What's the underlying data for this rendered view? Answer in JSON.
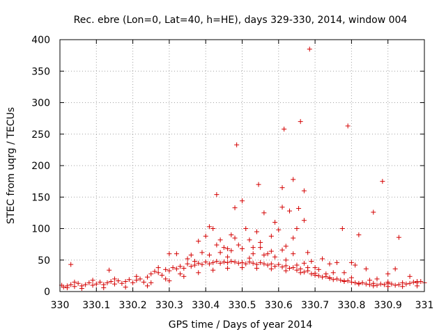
{
  "chart_data": {
    "type": "scatter",
    "title": "Rec. ebre (Lon=0, Lat=40, h=HE), days 329-330, 2014, window 004",
    "xlabel": "GPS time / Days of year 2014",
    "ylabel": "STEC from uqrg / TECUs",
    "xlim": [
      330,
      331
    ],
    "ylim": [
      0,
      400
    ],
    "grid": true,
    "x_ticks": [
      "330",
      "330.1",
      "330.2",
      "330.3",
      "330.4",
      "330.5",
      "330.6",
      "330.7",
      "330.8",
      "330.9",
      "331"
    ],
    "y_ticks": [
      "0",
      "50",
      "100",
      "150",
      "200",
      "250",
      "300",
      "350",
      "400"
    ],
    "series": [
      {
        "name": "STEC",
        "color": "#d40000",
        "marker": "plus",
        "points": [
          [
            330.005,
            10
          ],
          [
            330.01,
            7
          ],
          [
            330.02,
            9
          ],
          [
            330.03,
            11
          ],
          [
            330.03,
            43
          ],
          [
            330.04,
            8
          ],
          [
            330.05,
            13
          ],
          [
            330.06,
            9
          ],
          [
            330.07,
            11
          ],
          [
            330.08,
            14
          ],
          [
            330.09,
            10
          ],
          [
            330.1,
            12
          ],
          [
            330.11,
            15
          ],
          [
            330.12,
            11
          ],
          [
            330.13,
            14
          ],
          [
            330.135,
            34
          ],
          [
            330.14,
            16
          ],
          [
            330.15,
            12
          ],
          [
            330.16,
            17
          ],
          [
            330.17,
            13
          ],
          [
            330.18,
            16
          ],
          [
            330.19,
            19
          ],
          [
            330.2,
            14
          ],
          [
            330.21,
            18
          ],
          [
            330.22,
            20
          ],
          [
            330.23,
            15
          ],
          [
            330.24,
            23
          ],
          [
            330.25,
            28
          ],
          [
            330.26,
            32
          ],
          [
            330.27,
            30
          ],
          [
            330.28,
            26
          ],
          [
            330.29,
            35
          ],
          [
            330.3,
            33
          ],
          [
            330.31,
            38
          ],
          [
            330.32,
            36
          ],
          [
            330.33,
            40
          ],
          [
            330.34,
            37
          ],
          [
            330.35,
            44
          ],
          [
            330.36,
            40
          ],
          [
            330.37,
            42
          ],
          [
            330.38,
            45
          ],
          [
            330.39,
            43
          ],
          [
            330.4,
            47
          ],
          [
            330.41,
            44
          ],
          [
            330.42,
            46
          ],
          [
            330.43,
            48
          ],
          [
            330.44,
            45
          ],
          [
            330.45,
            47
          ],
          [
            330.46,
            46
          ],
          [
            330.47,
            48
          ],
          [
            330.48,
            47
          ],
          [
            330.49,
            45
          ],
          [
            330.5,
            46
          ],
          [
            330.51,
            44
          ],
          [
            330.52,
            47
          ],
          [
            330.53,
            45
          ],
          [
            330.54,
            43
          ],
          [
            330.55,
            46
          ],
          [
            330.56,
            44
          ],
          [
            330.57,
            42
          ],
          [
            330.58,
            44
          ],
          [
            330.59,
            40
          ],
          [
            330.6,
            43
          ],
          [
            330.61,
            39
          ],
          [
            330.62,
            41
          ],
          [
            330.63,
            37
          ],
          [
            330.64,
            38
          ],
          [
            330.65,
            34
          ],
          [
            330.66,
            36
          ],
          [
            330.67,
            31
          ],
          [
            330.68,
            33
          ],
          [
            330.69,
            28
          ],
          [
            330.7,
            29
          ],
          [
            330.71,
            25
          ],
          [
            330.72,
            23
          ],
          [
            330.73,
            24
          ],
          [
            330.74,
            21
          ],
          [
            330.75,
            19
          ],
          [
            330.76,
            20
          ],
          [
            330.77,
            18
          ],
          [
            330.78,
            16
          ],
          [
            330.79,
            17
          ],
          [
            330.8,
            15
          ],
          [
            330.81,
            14
          ],
          [
            330.82,
            13
          ],
          [
            330.83,
            14
          ],
          [
            330.84,
            12
          ],
          [
            330.85,
            11
          ],
          [
            330.86,
            13
          ],
          [
            330.87,
            10
          ],
          [
            330.88,
            12
          ],
          [
            330.89,
            11
          ],
          [
            330.9,
            13
          ],
          [
            330.91,
            12
          ],
          [
            330.92,
            10
          ],
          [
            330.93,
            11
          ],
          [
            330.94,
            14
          ],
          [
            330.95,
            12
          ],
          [
            330.96,
            13
          ],
          [
            330.97,
            15
          ],
          [
            330.98,
            14
          ],
          [
            330.99,
            16
          ],
          [
            331,
            14
          ],
          [
            330.02,
            6
          ],
          [
            330.06,
            5
          ],
          [
            330.12,
            6
          ],
          [
            330.18,
            7
          ],
          [
            330.24,
            9
          ],
          [
            330.3,
            17
          ],
          [
            330.34,
            24
          ],
          [
            330.38,
            30
          ],
          [
            330.42,
            34
          ],
          [
            330.46,
            37
          ],
          [
            330.5,
            38
          ],
          [
            330.54,
            37
          ],
          [
            330.58,
            36
          ],
          [
            330.62,
            33
          ],
          [
            330.66,
            30
          ],
          [
            330.7,
            26
          ],
          [
            330.74,
            22
          ],
          [
            330.78,
            17
          ],
          [
            330.82,
            12
          ],
          [
            330.86,
            9
          ],
          [
            330.9,
            8
          ],
          [
            330.94,
            8
          ],
          [
            330.98,
            9
          ],
          [
            330.04,
            15
          ],
          [
            330.09,
            18
          ],
          [
            330.15,
            20
          ],
          [
            330.21,
            24
          ],
          [
            330.27,
            38
          ],
          [
            330.3,
            60
          ],
          [
            330.32,
            60
          ],
          [
            330.36,
            58
          ],
          [
            330.38,
            80
          ],
          [
            330.39,
            62
          ],
          [
            330.4,
            88
          ],
          [
            330.41,
            103
          ],
          [
            330.42,
            100
          ],
          [
            330.43,
            154
          ],
          [
            330.44,
            82
          ],
          [
            330.45,
            70
          ],
          [
            330.46,
            68
          ],
          [
            330.47,
            90
          ],
          [
            330.48,
            85
          ],
          [
            330.48,
            133
          ],
          [
            330.485,
            233
          ],
          [
            330.49,
            74
          ],
          [
            330.5,
            144
          ],
          [
            330.51,
            100
          ],
          [
            330.52,
            82
          ],
          [
            330.53,
            70
          ],
          [
            330.54,
            95
          ],
          [
            330.545,
            170
          ],
          [
            330.55,
            78
          ],
          [
            330.56,
            125
          ],
          [
            330.57,
            60
          ],
          [
            330.58,
            88
          ],
          [
            330.59,
            110
          ],
          [
            330.6,
            98
          ],
          [
            330.61,
            134
          ],
          [
            330.61,
            165
          ],
          [
            330.615,
            258
          ],
          [
            330.62,
            72
          ],
          [
            330.63,
            128
          ],
          [
            330.64,
            85
          ],
          [
            330.64,
            178
          ],
          [
            330.65,
            100
          ],
          [
            330.655,
            132
          ],
          [
            330.66,
            270
          ],
          [
            330.67,
            113
          ],
          [
            330.67,
            160
          ],
          [
            330.68,
            62
          ],
          [
            330.685,
            385
          ],
          [
            330.69,
            48
          ],
          [
            330.7,
            38
          ],
          [
            330.72,
            52
          ],
          [
            330.74,
            44
          ],
          [
            330.76,
            46
          ],
          [
            330.775,
            100
          ],
          [
            330.78,
            30
          ],
          [
            330.79,
            263
          ],
          [
            330.8,
            46
          ],
          [
            330.81,
            42
          ],
          [
            330.82,
            90
          ],
          [
            330.84,
            36
          ],
          [
            330.86,
            126
          ],
          [
            330.87,
            20
          ],
          [
            330.885,
            175
          ],
          [
            330.9,
            28
          ],
          [
            330.92,
            36
          ],
          [
            330.93,
            86
          ],
          [
            330.96,
            24
          ],
          [
            330.98,
            16
          ],
          [
            330.25,
            14
          ],
          [
            330.29,
            20
          ],
          [
            330.33,
            28
          ],
          [
            330.37,
            48
          ],
          [
            330.41,
            58
          ],
          [
            330.44,
            62
          ],
          [
            330.47,
            65
          ],
          [
            330.5,
            68
          ],
          [
            330.53,
            60
          ],
          [
            330.56,
            58
          ],
          [
            330.59,
            55
          ],
          [
            330.62,
            50
          ],
          [
            330.65,
            42
          ],
          [
            330.68,
            38
          ],
          [
            330.71,
            35
          ],
          [
            330.75,
            30
          ],
          [
            330.8,
            22
          ],
          [
            330.85,
            18
          ],
          [
            330.9,
            15
          ],
          [
            330.35,
            52
          ],
          [
            330.43,
            74
          ],
          [
            330.46,
            55
          ],
          [
            330.52,
            53
          ],
          [
            330.55,
            70
          ],
          [
            330.58,
            64
          ],
          [
            330.61,
            66
          ],
          [
            330.64,
            60
          ],
          [
            330.67,
            45
          ],
          [
            330.73,
            28
          ]
        ]
      }
    ]
  }
}
